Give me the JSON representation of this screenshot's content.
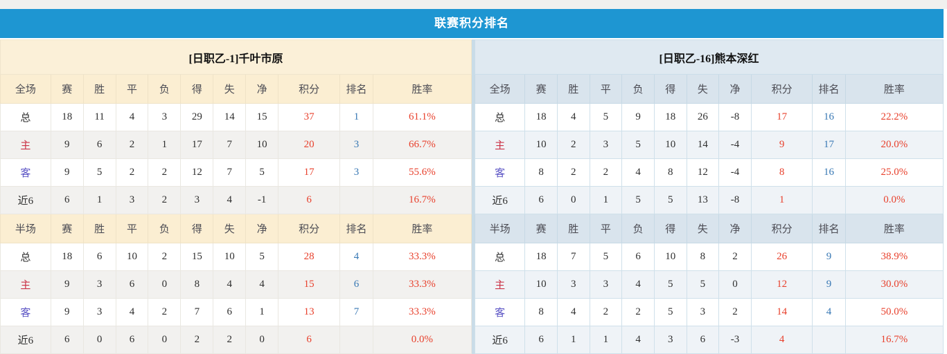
{
  "title": "联赛积分排名",
  "colors": {
    "title_bar_blue": "#1e96d2",
    "left_header_cream": "#fbeed2",
    "right_header_blue": "#d9e4ed",
    "value_red": "#e8402c",
    "rank_blue": "#3878b4",
    "home_label_red": "#cb3246",
    "away_label_blue": "#5a53c4"
  },
  "columns": [
    "赛",
    "胜",
    "平",
    "负",
    "得",
    "失",
    "净",
    "积分",
    "排名",
    "胜率"
  ],
  "teams": [
    {
      "name": "[日职乙-1]千叶市原",
      "sections": [
        {
          "label": "全场",
          "rows": [
            {
              "label": "总",
              "type": "total",
              "values": [
                "18",
                "11",
                "4",
                "3",
                "29",
                "14",
                "15",
                "37",
                "1",
                "61.1%"
              ]
            },
            {
              "label": "主",
              "type": "home",
              "values": [
                "9",
                "6",
                "2",
                "1",
                "17",
                "7",
                "10",
                "20",
                "3",
                "66.7%"
              ]
            },
            {
              "label": "客",
              "type": "away",
              "values": [
                "9",
                "5",
                "2",
                "2",
                "12",
                "7",
                "5",
                "17",
                "3",
                "55.6%"
              ]
            },
            {
              "label": "近6",
              "type": "recent",
              "values": [
                "6",
                "1",
                "3",
                "2",
                "3",
                "4",
                "-1",
                "6",
                "",
                "16.7%"
              ]
            }
          ]
        },
        {
          "label": "半场",
          "rows": [
            {
              "label": "总",
              "type": "total",
              "values": [
                "18",
                "6",
                "10",
                "2",
                "15",
                "10",
                "5",
                "28",
                "4",
                "33.3%"
              ]
            },
            {
              "label": "主",
              "type": "home",
              "values": [
                "9",
                "3",
                "6",
                "0",
                "8",
                "4",
                "4",
                "15",
                "6",
                "33.3%"
              ]
            },
            {
              "label": "客",
              "type": "away",
              "values": [
                "9",
                "3",
                "4",
                "2",
                "7",
                "6",
                "1",
                "13",
                "7",
                "33.3%"
              ]
            },
            {
              "label": "近6",
              "type": "recent",
              "values": [
                "6",
                "0",
                "6",
                "0",
                "2",
                "2",
                "0",
                "6",
                "",
                "0.0%"
              ]
            }
          ]
        }
      ]
    },
    {
      "name": "[日职乙-16]熊本深红",
      "sections": [
        {
          "label": "全场",
          "rows": [
            {
              "label": "总",
              "type": "total",
              "values": [
                "18",
                "4",
                "5",
                "9",
                "18",
                "26",
                "-8",
                "17",
                "16",
                "22.2%"
              ]
            },
            {
              "label": "主",
              "type": "home",
              "values": [
                "10",
                "2",
                "3",
                "5",
                "10",
                "14",
                "-4",
                "9",
                "17",
                "20.0%"
              ]
            },
            {
              "label": "客",
              "type": "away",
              "values": [
                "8",
                "2",
                "2",
                "4",
                "8",
                "12",
                "-4",
                "8",
                "16",
                "25.0%"
              ]
            },
            {
              "label": "近6",
              "type": "recent",
              "values": [
                "6",
                "0",
                "1",
                "5",
                "5",
                "13",
                "-8",
                "1",
                "",
                "0.0%"
              ]
            }
          ]
        },
        {
          "label": "半场",
          "rows": [
            {
              "label": "总",
              "type": "total",
              "values": [
                "18",
                "7",
                "5",
                "6",
                "10",
                "8",
                "2",
                "26",
                "9",
                "38.9%"
              ]
            },
            {
              "label": "主",
              "type": "home",
              "values": [
                "10",
                "3",
                "3",
                "4",
                "5",
                "5",
                "0",
                "12",
                "9",
                "30.0%"
              ]
            },
            {
              "label": "客",
              "type": "away",
              "values": [
                "8",
                "4",
                "2",
                "2",
                "5",
                "3",
                "2",
                "14",
                "4",
                "50.0%"
              ]
            },
            {
              "label": "近6",
              "type": "recent",
              "values": [
                "6",
                "1",
                "1",
                "4",
                "3",
                "6",
                "-3",
                "4",
                "",
                "16.7%"
              ]
            }
          ]
        }
      ]
    }
  ]
}
